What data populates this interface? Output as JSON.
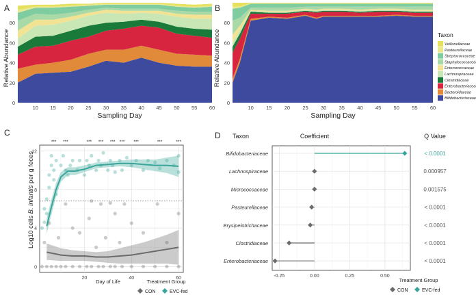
{
  "panels": [
    {
      "letter": "A",
      "ylabel": "Relative Abundance",
      "xlabel": "Sampling Day"
    },
    {
      "letter": "B",
      "ylabel": "Relative Abundance",
      "xlabel": "Sampling Day"
    },
    {
      "letter": "C",
      "ylabel_prefix": "Log10 cells ",
      "ylabel_species": "B. infantis",
      "ylabel_suffix": " per g feces",
      "xlabel": "Day of Life"
    },
    {
      "letter": "D",
      "col_taxon": "Taxon",
      "col_coef": "Coefficient",
      "col_q": "Q Value"
    }
  ],
  "legend_taxon": {
    "title": "Taxon",
    "items": [
      {
        "name": "Veillonellaceae",
        "color": "#e6e15c"
      },
      {
        "name": "Pasteurellaceae",
        "color": "#e9e891"
      },
      {
        "name": "Streptococcaceae",
        "color": "#7fcca1"
      },
      {
        "name": "Staphylococcaceae",
        "color": "#a9d9a6"
      },
      {
        "name": "Enterococcaceae",
        "color": "#f2e394"
      },
      {
        "name": "Lachnospiraceae",
        "color": "#c9e6b5"
      },
      {
        "name": "Clostridiaceae",
        "color": "#1a7a3a"
      },
      {
        "name": "Enterobacteriaceae",
        "color": "#d8253f"
      },
      {
        "name": "Bacteroidaceae",
        "color": "#e08a3a"
      },
      {
        "name": "Bifidobacteriaceae",
        "color": "#3d4a9e"
      }
    ]
  },
  "legend_group": {
    "title": "Treatment Group",
    "items": [
      {
        "name": "CON",
        "color": "#6b6b6b"
      },
      {
        "name": "EVC-fed",
        "color": "#3aa59a"
      }
    ]
  },
  "chart_data": [
    {
      "type": "area",
      "panel": "A",
      "title": "",
      "xlabel": "Sampling Day",
      "ylabel": "Relative Abundance",
      "x": [
        5,
        10,
        15,
        20,
        25,
        30,
        35,
        40,
        45,
        50,
        55,
        60
      ],
      "xlim": [
        5,
        60
      ],
      "ylim": [
        0,
        100
      ],
      "xticks": [
        10,
        15,
        20,
        25,
        30,
        35,
        40,
        45,
        50,
        55,
        60
      ],
      "yticks": [
        0,
        20,
        40,
        60,
        80
      ],
      "series": [
        {
          "name": "Bifidobacteriaceae",
          "values": [
            20,
            29,
            30,
            31,
            36,
            42,
            40,
            45,
            40,
            37,
            36,
            36
          ]
        },
        {
          "name": "Bacteroidaceae",
          "values": [
            14,
            9,
            10,
            12,
            13,
            11,
            13,
            12,
            13,
            12,
            12,
            11
          ]
        },
        {
          "name": "Enterobacteriaceae",
          "values": [
            14,
            18,
            17,
            19,
            17,
            19,
            21,
            20,
            22,
            20,
            19,
            18
          ]
        },
        {
          "name": "Clostridiaceae",
          "values": [
            8,
            10,
            10,
            10,
            11,
            8,
            7,
            6,
            6,
            7,
            7,
            8
          ]
        },
        {
          "name": "Lachnospiraceae",
          "values": [
            8,
            11,
            11,
            10,
            10,
            10,
            8,
            7,
            8,
            10,
            10,
            11
          ]
        },
        {
          "name": "Enterococcaceae",
          "values": [
            8,
            6,
            5,
            4,
            3,
            3,
            3,
            2,
            3,
            3,
            4,
            4
          ]
        },
        {
          "name": "Staphylococcaceae",
          "values": [
            10,
            6,
            5,
            4,
            3,
            2,
            2,
            2,
            2,
            3,
            3,
            3
          ]
        },
        {
          "name": "Streptococcaceae",
          "values": [
            8,
            6,
            7,
            6,
            4,
            3,
            4,
            4,
            4,
            4,
            4,
            5
          ]
        },
        {
          "name": "Pasteurellaceae",
          "values": [
            3,
            1,
            1,
            1,
            1,
            1,
            1,
            1,
            1,
            1,
            1,
            1
          ]
        },
        {
          "name": "Veillonellaceae",
          "values": [
            4,
            2,
            2,
            2,
            1,
            1,
            1,
            1,
            1,
            2,
            2,
            2
          ]
        }
      ]
    },
    {
      "type": "area",
      "panel": "B",
      "title": "",
      "xlabel": "Sampling Day",
      "ylabel": "Relative Abundance",
      "x": [
        5,
        7,
        10,
        15,
        20,
        25,
        28,
        30,
        35,
        40,
        45,
        50,
        55,
        60
      ],
      "xlim": [
        5,
        60
      ],
      "ylim": [
        0,
        100
      ],
      "xticks": [
        10,
        15,
        20,
        25,
        30,
        35,
        40,
        45,
        50,
        55,
        60
      ],
      "yticks": [
        0,
        20,
        40,
        60,
        80
      ],
      "series": [
        {
          "name": "Bifidobacteriaceae",
          "values": [
            20,
            40,
            82,
            85,
            84,
            87,
            84,
            86,
            86,
            86,
            86,
            87,
            86,
            86
          ]
        },
        {
          "name": "Bacteroidaceae",
          "values": [
            4,
            4,
            2,
            1,
            1,
            1,
            1,
            1,
            1,
            1,
            1,
            1,
            1,
            1
          ]
        },
        {
          "name": "Enterobacteriaceae",
          "values": [
            26,
            20,
            5,
            3,
            4,
            3,
            5,
            4,
            4,
            3,
            4,
            3,
            3,
            3
          ]
        },
        {
          "name": "Clostridiaceae",
          "values": [
            6,
            5,
            2,
            1,
            1,
            1,
            1,
            1,
            1,
            1,
            1,
            1,
            1,
            1
          ]
        },
        {
          "name": "Lachnospiraceae",
          "values": [
            4,
            3,
            1,
            1,
            1,
            1,
            1,
            1,
            1,
            1,
            1,
            1,
            1,
            1
          ]
        },
        {
          "name": "Enterococcaceae",
          "values": [
            8,
            5,
            1,
            1,
            1,
            1,
            1,
            1,
            1,
            1,
            1,
            1,
            1,
            1
          ]
        },
        {
          "name": "Staphylococcaceae",
          "values": [
            14,
            8,
            2,
            3,
            3,
            2,
            3,
            2,
            2,
            3,
            2,
            2,
            3,
            3
          ]
        },
        {
          "name": "Streptococcaceae",
          "values": [
            12,
            10,
            4,
            4,
            4,
            3,
            3,
            3,
            3,
            3,
            3,
            3,
            3,
            3
          ]
        },
        {
          "name": "Pasteurellaceae",
          "values": [
            2,
            1,
            0.5,
            0.5,
            0.5,
            0.5,
            0.5,
            0.5,
            0.5,
            0.5,
            0.5,
            0.5,
            0.5,
            0.5
          ]
        },
        {
          "name": "Veillonellaceae",
          "values": [
            4,
            4,
            0.5,
            0.5,
            0.5,
            0.5,
            0.5,
            0.5,
            0.5,
            0.5,
            0.5,
            0.5,
            0.5,
            0.5
          ]
        }
      ]
    },
    {
      "type": "scatter",
      "panel": "C",
      "title": "",
      "xlabel": "Day of Life",
      "ylabel": "Log10 cells B. infantis per g feces",
      "xlim": [
        1,
        62
      ],
      "ylim": [
        -0.6,
        12.6
      ],
      "xticks": [
        20,
        40,
        60
      ],
      "yticks": [
        0,
        4,
        8,
        12
      ],
      "threshold": 6.8,
      "significance_label": "***",
      "significance_days": [
        7,
        12,
        22,
        27,
        32,
        36,
        42,
        52,
        60
      ],
      "series": [
        {
          "name": "EVC-fed",
          "trend_x": [
            4,
            6,
            8,
            10,
            13,
            16,
            20,
            25,
            30,
            35,
            40,
            45,
            50,
            55,
            60
          ],
          "trend_y": [
            4.2,
            6.2,
            8.0,
            9.3,
            9.9,
            9.9,
            10.1,
            10.5,
            10.6,
            10.7,
            10.7,
            10.6,
            10.5,
            10.5,
            10.4
          ],
          "ci_low": [
            3.4,
            5.4,
            7.3,
            8.8,
            9.5,
            9.5,
            9.8,
            10.2,
            10.3,
            10.4,
            10.3,
            10.1,
            9.9,
            9.7,
            9.3
          ],
          "ci_high": [
            5.0,
            7.0,
            8.7,
            9.8,
            10.3,
            10.3,
            10.5,
            10.8,
            10.9,
            11.0,
            11.1,
            11.1,
            11.1,
            11.3,
            11.5
          ],
          "points": [
            [
              2,
              4
            ],
            [
              3,
              4.6
            ],
            [
              3,
              6
            ],
            [
              4,
              5.5
            ],
            [
              4,
              7
            ],
            [
              5,
              8.2
            ],
            [
              5,
              9.5
            ],
            [
              6,
              10.5
            ],
            [
              6,
              11.5
            ],
            [
              7,
              9
            ],
            [
              7,
              10
            ],
            [
              8,
              11
            ],
            [
              8,
              7.5
            ],
            [
              10,
              10.5
            ],
            [
              11,
              11.5
            ],
            [
              12,
              10
            ],
            [
              13,
              9.5
            ],
            [
              14,
              10.5
            ],
            [
              15,
              11
            ],
            [
              17,
              10
            ],
            [
              18,
              11
            ],
            [
              20,
              9.5
            ],
            [
              21,
              11
            ],
            [
              22,
              10.5
            ],
            [
              23,
              11.5
            ],
            [
              25,
              10
            ],
            [
              26,
              11
            ],
            [
              27,
              10.5
            ],
            [
              28,
              11.8
            ],
            [
              30,
              10
            ],
            [
              31,
              11
            ],
            [
              32,
              10.5
            ],
            [
              33,
              9.8
            ],
            [
              35,
              11
            ],
            [
              36,
              10
            ],
            [
              38,
              11.3
            ],
            [
              40,
              10.5
            ],
            [
              42,
              11
            ],
            [
              45,
              10
            ],
            [
              47,
              11
            ],
            [
              50,
              10.8
            ],
            [
              52,
              10.2
            ],
            [
              55,
              11
            ],
            [
              58,
              10.5
            ],
            [
              60,
              11.5
            ],
            [
              60,
              9.8
            ]
          ]
        },
        {
          "name": "CON",
          "trend_x": [
            4,
            10,
            15,
            20,
            25,
            30,
            35,
            40,
            45,
            50,
            55,
            60
          ],
          "trend_y": [
            1.5,
            1.2,
            1.1,
            1.1,
            1.0,
            1.0,
            1.1,
            1.2,
            1.4,
            1.6,
            1.8,
            2.0
          ],
          "ci_low": [
            0.7,
            0.6,
            0.6,
            0.6,
            0.5,
            0.4,
            0.3,
            0.3,
            0.3,
            0.3,
            0.3,
            0.2
          ],
          "ci_high": [
            2.4,
            1.9,
            1.7,
            1.6,
            1.5,
            1.6,
            1.9,
            2.2,
            2.5,
            2.9,
            3.3,
            3.8
          ],
          "points": [
            [
              2,
              0
            ],
            [
              4,
              0
            ],
            [
              6,
              0
            ],
            [
              8,
              0
            ],
            [
              10,
              0
            ],
            [
              12,
              0
            ],
            [
              15,
              0
            ],
            [
              18,
              0
            ],
            [
              21,
              0
            ],
            [
              23,
              0
            ],
            [
              26,
              0
            ],
            [
              28,
              0
            ],
            [
              31,
              0
            ],
            [
              33,
              0
            ],
            [
              36,
              0
            ],
            [
              40,
              0
            ],
            [
              45,
              0
            ],
            [
              50,
              0
            ],
            [
              55,
              0
            ],
            [
              60,
              0
            ],
            [
              3,
              2.5
            ],
            [
              5,
              4.5
            ],
            [
              9,
              3
            ],
            [
              12,
              6.5
            ],
            [
              15,
              4
            ],
            [
              18,
              3.5
            ],
            [
              22,
              5
            ],
            [
              23,
              6.8
            ],
            [
              25,
              2
            ],
            [
              27,
              6.5
            ],
            [
              29,
              3
            ],
            [
              31,
              6.6
            ],
            [
              33,
              5.5
            ],
            [
              35,
              2.5
            ],
            [
              37,
              6.5
            ],
            [
              40,
              4.5
            ],
            [
              45,
              3.5
            ],
            [
              51,
              6.5
            ],
            [
              55,
              2.5
            ],
            [
              60,
              5.5
            ]
          ]
        }
      ]
    },
    {
      "type": "scatter",
      "panel": "D",
      "title": "",
      "xlabel": "",
      "ylabel": "Taxon",
      "xlim": [
        -0.3,
        0.68
      ],
      "xticks": [
        -0.25,
        0.0,
        0.25,
        0.5
      ],
      "xtick_labels": [
        "-0.25",
        "0.00",
        "0.25",
        "0.50"
      ],
      "categories": [
        "Bifidobacteriaceae",
        "Lachnospiraceae",
        "Micrococcaceae",
        "Pasteurellaceae",
        "Erysipelotrichaceae",
        "Clostridiaceae",
        "Enterobacteriaceae"
      ],
      "coefficients": [
        0.64,
        0.0,
        0.0,
        -0.02,
        -0.03,
        -0.18,
        -0.28
      ],
      "groups": [
        "EVC-fed",
        "CON",
        "CON",
        "CON",
        "CON",
        "CON",
        "CON"
      ],
      "q_values": [
        "< 0.0001",
        "0.000957",
        "0.001575",
        "< 0.0001",
        "< 0.0001",
        "< 0.0001",
        "< 0.0001"
      ]
    }
  ]
}
